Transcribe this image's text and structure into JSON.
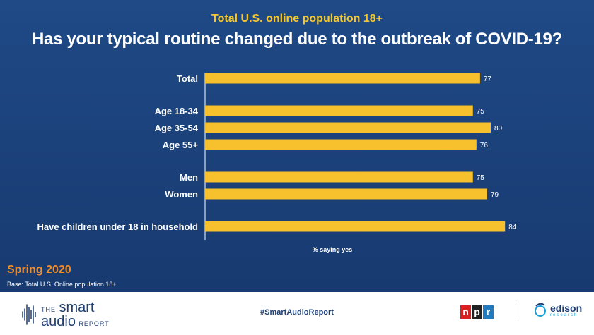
{
  "header": {
    "subtitle": "Total U.S. online population 18+",
    "title": "Has your typical routine changed due to the outbreak of COVID-19?"
  },
  "chart_data": {
    "type": "bar",
    "orientation": "horizontal",
    "categories": [
      "Total",
      "Age 18-34",
      "Age 35-54",
      "Age 55+",
      "Men",
      "Women",
      "Have children under 18 in household"
    ],
    "values": [
      77,
      75,
      80,
      76,
      75,
      79,
      84
    ],
    "groups": [
      [
        0
      ],
      [
        1,
        2,
        3
      ],
      [
        4,
        5
      ],
      [
        6
      ]
    ],
    "xlabel": "% saying yes",
    "xlim": [
      0,
      100
    ],
    "bar_color": "#f7c12d",
    "grid": false,
    "data_labels": true
  },
  "footnote": {
    "season": "Spring 2020",
    "base": "Base: Total U.S. Online population 18+"
  },
  "footer": {
    "brand_the": "THE",
    "brand_name": "smart",
    "brand_audio": "audio",
    "brand_report": "REPORT",
    "hashtag": "#SmartAudioReport",
    "npr_letters": [
      "n",
      "p",
      "r"
    ],
    "npr_colors": [
      "#d62021",
      "#222222",
      "#237bbd"
    ],
    "edison_name": "edison",
    "edison_sub": "research"
  }
}
